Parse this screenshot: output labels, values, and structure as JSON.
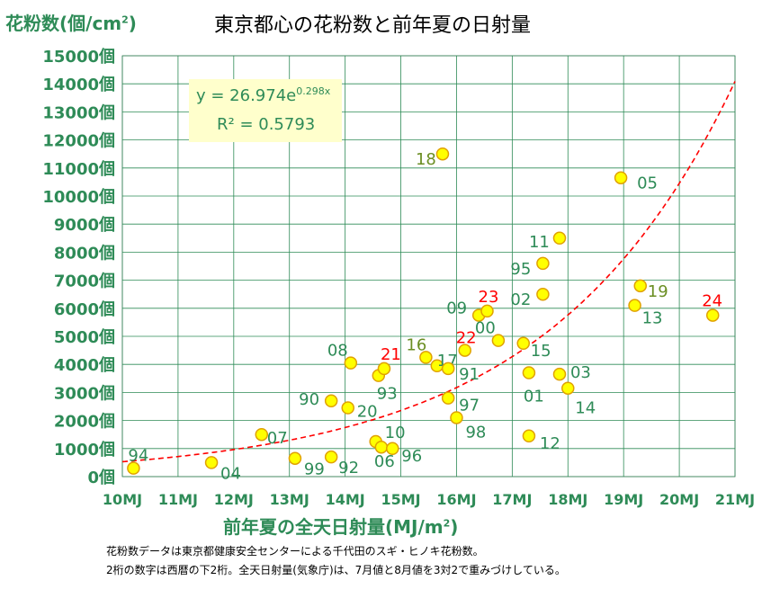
{
  "chart_data": {
    "type": "scatter",
    "title": "東京都心の花粉数と前年夏の日射量",
    "ylabel_main": "花粉数(個/cm",
    "ylabel_sup": "2",
    "ylabel_close": ")",
    "xlabel_main": "前年夏の全天日射量(MJ/m",
    "xlabel_sup": "2",
    "xlabel_close": ")",
    "xlim": [
      10,
      21
    ],
    "ylim": [
      0,
      15000
    ],
    "xticks": [
      "10MJ",
      "11MJ",
      "12MJ",
      "13MJ",
      "14MJ",
      "15MJ",
      "16MJ",
      "17MJ",
      "18MJ",
      "19MJ",
      "20MJ",
      "21MJ"
    ],
    "yticks": [
      "0個",
      "1000個",
      "2000個",
      "3000個",
      "4000個",
      "5000個",
      "6000個",
      "7000個",
      "8000個",
      "9000個",
      "10000個",
      "11000個",
      "12000個",
      "13000個",
      "14000個",
      "15000個"
    ],
    "grid": true,
    "trendline": {
      "type": "exponential",
      "a": 26.974,
      "b": 0.298,
      "equation_main": "y = 26.974e",
      "equation_sup": "0.298x",
      "r2_text": "R² = 0.5793"
    },
    "points": [
      {
        "label": "94",
        "x": 10.2,
        "y": 300,
        "color": "#2e8b57"
      },
      {
        "label": "04",
        "x": 11.6,
        "y": 500,
        "color": "#2e8b57"
      },
      {
        "label": "07",
        "x": 12.5,
        "y": 1500,
        "color": "#2e8b57"
      },
      {
        "label": "99",
        "x": 13.1,
        "y": 650,
        "color": "#2e8b57"
      },
      {
        "label": "92",
        "x": 13.75,
        "y": 700,
        "color": "#2e8b57"
      },
      {
        "label": "90",
        "x": 13.75,
        "y": 2700,
        "color": "#2e8b57"
      },
      {
        "label": "20",
        "x": 14.05,
        "y": 2450,
        "color": "#2e8b57"
      },
      {
        "label": "08",
        "x": 14.1,
        "y": 4050,
        "color": "#2e8b57"
      },
      {
        "label": "93",
        "x": 14.6,
        "y": 3600,
        "color": "#2e8b57"
      },
      {
        "label": "21",
        "x": 14.7,
        "y": 3850,
        "color": "#ff0000"
      },
      {
        "label": "10",
        "x": 14.55,
        "y": 1250,
        "color": "#2e8b57"
      },
      {
        "label": "06",
        "x": 14.65,
        "y": 1050,
        "color": "#2e8b57"
      },
      {
        "label": "96",
        "x": 14.85,
        "y": 1000,
        "color": "#2e8b57"
      },
      {
        "label": "16",
        "x": 15.45,
        "y": 4250,
        "color": "#6b8e23"
      },
      {
        "label": "17",
        "x": 15.65,
        "y": 3950,
        "color": "#2e8b57"
      },
      {
        "label": "91",
        "x": 15.85,
        "y": 3850,
        "color": "#2e8b57"
      },
      {
        "label": "97",
        "x": 15.85,
        "y": 2800,
        "color": "#2e8b57"
      },
      {
        "label": "98",
        "x": 16.0,
        "y": 2100,
        "color": "#2e8b57"
      },
      {
        "label": "22",
        "x": 16.15,
        "y": 4500,
        "color": "#ff0000"
      },
      {
        "label": "18",
        "x": 15.75,
        "y": 11500,
        "color": "#6b8e23"
      },
      {
        "label": "09",
        "x": 16.4,
        "y": 5750,
        "color": "#2e8b57"
      },
      {
        "label": "23",
        "x": 16.55,
        "y": 5900,
        "color": "#ff0000"
      },
      {
        "label": "00",
        "x": 16.75,
        "y": 4850,
        "color": "#2e8b57"
      },
      {
        "label": "15",
        "x": 17.2,
        "y": 4750,
        "color": "#2e8b57"
      },
      {
        "label": "01",
        "x": 17.3,
        "y": 3700,
        "color": "#2e8b57"
      },
      {
        "label": "12",
        "x": 17.3,
        "y": 1450,
        "color": "#2e8b57"
      },
      {
        "label": "02",
        "x": 17.55,
        "y": 6500,
        "color": "#2e8b57"
      },
      {
        "label": "95",
        "x": 17.55,
        "y": 7600,
        "color": "#2e8b57"
      },
      {
        "label": "11",
        "x": 17.85,
        "y": 8500,
        "color": "#2e8b57"
      },
      {
        "label": "03",
        "x": 17.85,
        "y": 3650,
        "color": "#2e8b57"
      },
      {
        "label": "14",
        "x": 18.0,
        "y": 3150,
        "color": "#2e8b57"
      },
      {
        "label": "05",
        "x": 18.95,
        "y": 10650,
        "color": "#2e8b57"
      },
      {
        "label": "19",
        "x": 19.3,
        "y": 6800,
        "color": "#6b8e23"
      },
      {
        "label": "13",
        "x": 19.2,
        "y": 6100,
        "color": "#2e8b57"
      },
      {
        "label": "24",
        "x": 20.6,
        "y": 5750,
        "color": "#ff0000"
      }
    ]
  },
  "notes": [
    "花粉数データは東京都健康安全センターによる千代田のスギ・ヒノキ花粉数。",
    "2桁の数字は西暦の下2桁。全天日射量(気象庁)は、7月値と8月値を3対2で重みづけしている。"
  ],
  "colors": {
    "axis_text": "#2e8b57",
    "point_fill": "#ffff00",
    "point_stroke": "#e0a000",
    "trend_line": "#ff0000",
    "eq_box": "#ffffcc",
    "grid": "#2e8b57"
  }
}
